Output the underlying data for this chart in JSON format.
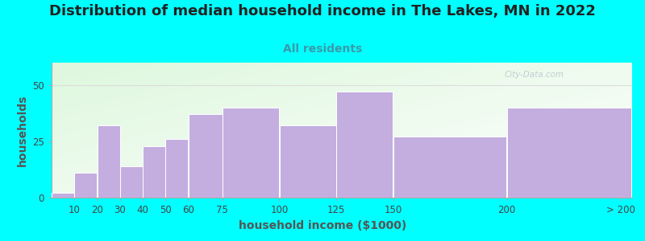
{
  "title": "Distribution of median household income in The Lakes, MN in 2022",
  "subtitle": "All residents",
  "xlabel": "household income ($1000)",
  "ylabel": "households",
  "background_color": "#00FFFF",
  "bar_color": "#c4aee0",
  "bar_edge_color": "#ffffff",
  "categories": [
    "10",
    "20",
    "30",
    "40",
    "50",
    "60",
    "75",
    "100",
    "125",
    "150",
    "200",
    "> 200"
  ],
  "values": [
    2,
    11,
    32,
    14,
    23,
    26,
    37,
    40,
    32,
    47,
    27,
    40
  ],
  "ylim": [
    0,
    60
  ],
  "yticks": [
    0,
    25,
    50
  ],
  "title_fontsize": 13,
  "subtitle_fontsize": 10,
  "axis_label_fontsize": 10,
  "tick_fontsize": 8.5,
  "watermark_text": "City-Data.com",
  "watermark_color": "#b8c4d0",
  "subtitle_color": "#3a9aaa",
  "title_color": "#222222",
  "axis_label_color": "#555555",
  "tick_color": "#444444",
  "grid_color": "#dddddd",
  "bar_lefts": [
    0,
    10,
    20,
    30,
    40,
    50,
    60,
    75,
    100,
    125,
    150,
    200
  ],
  "bar_rights": [
    10,
    20,
    30,
    40,
    50,
    60,
    75,
    100,
    125,
    150,
    200,
    255
  ],
  "tick_positions": [
    10,
    20,
    30,
    40,
    50,
    60,
    75,
    100,
    125,
    150,
    200,
    250
  ],
  "xlim": [
    0,
    255
  ],
  "plot_bg_topleft": [
    0.87,
    0.97,
    0.87
  ],
  "plot_bg_bottomright": [
    1.0,
    1.0,
    1.0
  ]
}
